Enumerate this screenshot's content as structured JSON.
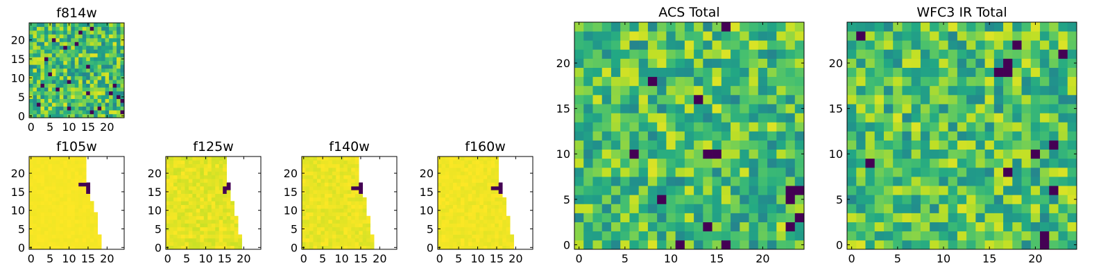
{
  "chart_data": [
    {
      "type": "heatmap",
      "title": "f814w",
      "grid_size": 25,
      "xlim": [
        -0.5,
        24.5
      ],
      "ylim": [
        -0.5,
        24.5
      ],
      "x_ticks": [
        "0",
        "5",
        "10",
        "15",
        "20"
      ],
      "y_ticks": [
        "0",
        "5",
        "10",
        "15",
        "20"
      ],
      "colormap": "viridis",
      "pattern": "noise",
      "dark_pixels": [
        [
          16,
          23
        ],
        [
          13,
          22
        ],
        [
          6,
          20
        ],
        [
          9,
          18
        ],
        [
          12,
          19
        ],
        [
          4,
          15
        ],
        [
          15,
          13
        ],
        [
          5,
          11
        ],
        [
          10,
          9
        ],
        [
          3,
          8
        ],
        [
          22,
          8
        ],
        [
          7,
          7
        ],
        [
          15,
          6
        ],
        [
          21,
          6
        ],
        [
          23,
          5
        ],
        [
          24,
          4
        ],
        [
          2,
          3
        ],
        [
          18,
          2
        ],
        [
          10,
          2
        ],
        [
          16,
          1
        ],
        [
          24,
          1
        ]
      ]
    },
    {
      "type": "heatmap",
      "title": "f105w",
      "grid_size": 25,
      "xlim": [
        -0.5,
        24.5
      ],
      "ylim": [
        -0.5,
        24.5
      ],
      "x_ticks": [
        "0",
        "5",
        "10",
        "15",
        "20"
      ],
      "y_ticks": [
        "0",
        "5",
        "10",
        "15",
        "20"
      ],
      "colormap": "viridis",
      "pattern": "masked",
      "right_edge": [
        19,
        19,
        19,
        19,
        18,
        18,
        18,
        18,
        18,
        18,
        17,
        17,
        17,
        16,
        16,
        16,
        16,
        16,
        15,
        15,
        15,
        15,
        15,
        15,
        15
      ],
      "dark_pixels": [
        [
          13,
          17
        ],
        [
          14,
          17
        ],
        [
          15,
          17
        ],
        [
          15,
          16
        ],
        [
          15,
          15
        ]
      ],
      "variation": 0.02
    },
    {
      "type": "heatmap",
      "title": "f125w",
      "grid_size": 25,
      "xlim": [
        -0.5,
        24.5
      ],
      "ylim": [
        -0.5,
        24.5
      ],
      "x_ticks": [
        "0",
        "5",
        "10",
        "15",
        "20"
      ],
      "y_ticks": [
        "0",
        "5",
        "10",
        "15",
        "20"
      ],
      "colormap": "viridis",
      "pattern": "masked",
      "right_edge": [
        20,
        20,
        20,
        20,
        19,
        19,
        19,
        19,
        19,
        18,
        18,
        18,
        18,
        17,
        17,
        17,
        17,
        17,
        16,
        16,
        16,
        16,
        16,
        16,
        16
      ],
      "dark_pixels": [
        [
          16,
          17
        ],
        [
          15,
          16
        ],
        [
          16,
          16
        ],
        [
          17,
          16
        ],
        [
          15,
          15
        ]
      ],
      "variation": 0.08
    },
    {
      "type": "heatmap",
      "title": "f140w",
      "grid_size": 25,
      "xlim": [
        -0.5,
        24.5
      ],
      "ylim": [
        -0.5,
        24.5
      ],
      "x_ticks": [
        "0",
        "5",
        "10",
        "15",
        "20"
      ],
      "y_ticks": [
        "0",
        "5",
        "10",
        "15",
        "20"
      ],
      "colormap": "viridis",
      "pattern": "masked",
      "right_edge": [
        19,
        19,
        19,
        19,
        18,
        18,
        18,
        18,
        18,
        17,
        17,
        17,
        17,
        17,
        16,
        16,
        16,
        16,
        15,
        15,
        15,
        15,
        15,
        15,
        15
      ],
      "dark_pixels": [
        [
          15,
          17
        ],
        [
          13,
          16
        ],
        [
          14,
          16
        ],
        [
          15,
          16
        ],
        [
          15,
          15
        ]
      ],
      "variation": 0.06
    },
    {
      "type": "heatmap",
      "title": "f160w",
      "grid_size": 25,
      "xlim": [
        -0.5,
        24.5
      ],
      "ylim": [
        -0.5,
        24.5
      ],
      "x_ticks": [
        "0",
        "5",
        "10",
        "15",
        "20"
      ],
      "y_ticks": [
        "0",
        "5",
        "10",
        "15",
        "20"
      ],
      "colormap": "viridis",
      "pattern": "masked",
      "right_edge": [
        20,
        20,
        20,
        20,
        19,
        19,
        19,
        19,
        19,
        18,
        18,
        18,
        18,
        18,
        17,
        17,
        17,
        17,
        16,
        16,
        16,
        16,
        16,
        16,
        16
      ],
      "dark_pixels": [
        [
          16,
          17
        ],
        [
          14,
          16
        ],
        [
          15,
          16
        ],
        [
          16,
          16
        ],
        [
          16,
          15
        ]
      ],
      "variation": 0.04
    },
    {
      "type": "heatmap",
      "title": "ACS Total",
      "grid_size": 25,
      "xlim": [
        -0.5,
        24.5
      ],
      "ylim": [
        -0.5,
        24.5
      ],
      "x_ticks": [
        "0",
        "5",
        "10",
        "15",
        "20"
      ],
      "y_ticks": [
        "0",
        "5",
        "10",
        "15",
        "20"
      ],
      "colormap": "viridis",
      "pattern": "noise",
      "dark_pixels": [
        [
          16,
          24
        ],
        [
          8,
          18
        ],
        [
          13,
          16
        ],
        [
          14,
          10
        ],
        [
          15,
          10
        ],
        [
          6,
          10
        ],
        [
          23,
          6
        ],
        [
          24,
          6
        ],
        [
          23,
          5
        ],
        [
          9,
          5
        ],
        [
          24,
          3
        ],
        [
          14,
          2
        ],
        [
          23,
          2
        ],
        [
          11,
          0
        ],
        [
          16,
          0
        ]
      ]
    },
    {
      "type": "heatmap",
      "title": "WFC3 IR Total",
      "grid_size": 25,
      "xlim": [
        -0.5,
        24.5
      ],
      "ylim": [
        -0.5,
        24.5
      ],
      "x_ticks": [
        "0",
        "5",
        "10",
        "15",
        "20"
      ],
      "y_ticks": [
        "0",
        "5",
        "10",
        "15",
        "20"
      ],
      "colormap": "viridis",
      "pattern": "noise",
      "dark_pixels": [
        [
          1,
          23
        ],
        [
          18,
          22
        ],
        [
          23,
          21
        ],
        [
          17,
          20
        ],
        [
          17,
          19
        ],
        [
          16,
          19
        ],
        [
          22,
          11
        ],
        [
          20,
          10
        ],
        [
          2,
          9
        ],
        [
          17,
          8
        ],
        [
          22,
          6
        ],
        [
          21,
          1
        ],
        [
          21,
          0
        ]
      ]
    }
  ]
}
